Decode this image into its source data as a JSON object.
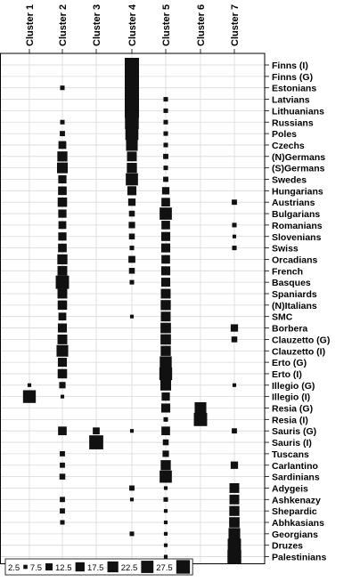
{
  "chart_data": {
    "type": "bubble-matrix",
    "title": "",
    "xlabel": "",
    "ylabel": "",
    "columns": [
      "Cluster 1",
      "Cluster 2",
      "Cluster 3",
      "Cluster 4",
      "Cluster 5",
      "Cluster 6",
      "Cluster 7"
    ],
    "rows": [
      "Finns (I)",
      "Finns (G)",
      "Estonians",
      "Latvians",
      "Lithuanians",
      "Russians",
      "Poles",
      "Czechs",
      "(N)Germans",
      "(S)Germans",
      "Swedes",
      "Hungarians",
      "Austrians",
      "Bulgarians",
      "Romanians",
      "Slovenians",
      "Swiss",
      "Orcadians",
      "French",
      "Basques",
      "Spaniards",
      "(N)Italians",
      "SMC",
      "Borbera",
      "Clauzetto (G)",
      "Clauzetto (I)",
      "Erto (G)",
      "Erto (I)",
      "Illegio (G)",
      "Illegio (I)",
      "Resia (G)",
      "Resia (I)",
      "Sauris (G)",
      "Sauris (I)",
      "Tuscans",
      "Carlantino",
      "Sardinians",
      "Adygeis",
      "Ashkenazy",
      "Shepardic",
      "Abhkasians",
      "Georgians",
      "Druzes",
      "Palestinians"
    ],
    "values": [
      [
        0,
        0,
        0,
        30,
        0,
        0,
        0
      ],
      [
        0,
        0,
        0,
        30,
        0,
        0,
        0
      ],
      [
        0,
        3,
        0,
        30,
        0,
        0,
        0
      ],
      [
        0,
        0,
        0,
        30,
        3,
        0,
        0
      ],
      [
        0,
        0,
        0,
        30,
        3,
        0,
        0
      ],
      [
        0,
        3,
        0,
        28,
        3,
        0,
        0
      ],
      [
        0,
        4,
        0,
        25,
        3,
        0,
        0
      ],
      [
        0,
        9,
        0,
        20,
        3,
        0,
        0
      ],
      [
        0,
        15,
        0,
        14,
        4,
        0,
        0
      ],
      [
        0,
        17,
        0,
        15,
        3,
        0,
        0
      ],
      [
        0,
        10,
        0,
        22,
        4,
        0,
        0
      ],
      [
        0,
        11,
        0,
        12,
        8,
        0,
        0
      ],
      [
        0,
        13,
        0,
        8,
        11,
        0,
        4
      ],
      [
        0,
        10,
        0,
        5,
        22,
        0,
        0
      ],
      [
        0,
        9,
        0,
        6,
        11,
        0,
        3
      ],
      [
        0,
        10,
        0,
        5,
        12,
        0,
        2
      ],
      [
        0,
        11,
        0,
        3,
        12,
        0,
        3
      ],
      [
        0,
        15,
        0,
        7,
        11,
        0,
        0
      ],
      [
        0,
        14,
        0,
        5,
        12,
        0,
        0
      ],
      [
        0,
        26,
        0,
        3,
        12,
        0,
        0
      ],
      [
        0,
        14,
        0,
        0,
        14,
        0,
        0
      ],
      [
        0,
        13,
        0,
        0,
        15,
        0,
        0
      ],
      [
        0,
        9,
        0,
        2,
        14,
        0,
        0
      ],
      [
        0,
        12,
        0,
        0,
        16,
        0,
        8
      ],
      [
        0,
        14,
        0,
        0,
        16,
        0,
        5
      ],
      [
        0,
        20,
        0,
        0,
        15,
        0,
        0
      ],
      [
        0,
        12,
        0,
        0,
        21,
        0,
        0
      ],
      [
        0,
        13,
        0,
        0,
        24,
        0,
        0
      ],
      [
        2,
        6,
        0,
        0,
        17,
        0,
        2
      ],
      [
        24,
        2,
        0,
        0,
        10,
        0,
        0
      ],
      [
        0,
        0,
        0,
        0,
        12,
        20,
        0
      ],
      [
        0,
        0,
        0,
        0,
        3,
        26,
        0
      ],
      [
        0,
        11,
        7,
        2,
        11,
        0,
        4
      ],
      [
        0,
        0,
        29,
        0,
        5,
        0,
        0
      ],
      [
        0,
        4,
        0,
        0,
        6,
        0,
        0
      ],
      [
        0,
        4,
        0,
        0,
        15,
        0,
        8
      ],
      [
        0,
        5,
        0,
        0,
        22,
        0,
        0
      ],
      [
        0,
        0,
        0,
        4,
        2,
        0,
        14
      ],
      [
        0,
        4,
        0,
        2,
        3,
        0,
        14
      ],
      [
        0,
        4,
        0,
        0,
        2,
        0,
        15
      ],
      [
        0,
        3,
        0,
        0,
        2,
        0,
        16
      ],
      [
        0,
        0,
        0,
        3,
        2,
        0,
        20
      ],
      [
        0,
        0,
        0,
        0,
        2,
        0,
        26
      ],
      [
        0,
        0,
        0,
        0,
        2,
        0,
        28
      ]
    ],
    "size_legend": {
      "values": [
        2.5,
        7.5,
        12.5,
        17.5,
        22.5,
        27.5
      ],
      "labels": [
        "2.5",
        "7.5",
        "12.5",
        "17.5",
        "22.5",
        "27.5"
      ]
    },
    "grid": true
  }
}
